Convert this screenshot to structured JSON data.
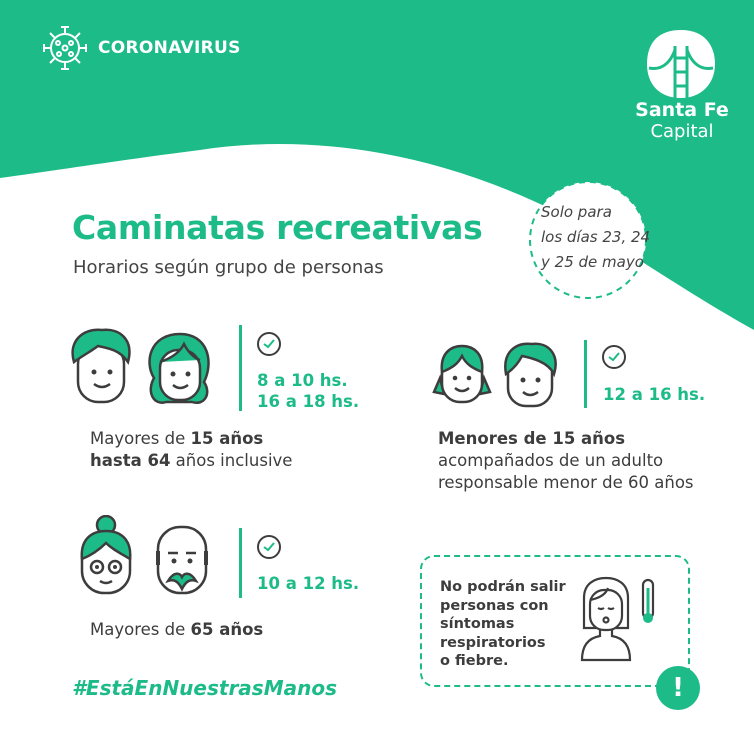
{
  "colors": {
    "brand_green": "#1dbb88",
    "text": "#3d3d3d"
  },
  "header": {
    "title": "CORONAVIRUS",
    "icon": "virus-icon",
    "logo": {
      "line1": "Santa Fe",
      "line2": "Capital",
      "icon": "bridge-logo"
    }
  },
  "main": {
    "title": "Caminatas recreativas",
    "subtitle": "Horarios según grupo de personas",
    "note": {
      "line1": "Solo para",
      "line2": "los días 23, 24",
      "line3": "y 25 de mayo"
    }
  },
  "groups": [
    {
      "icon": "adults-faces-icon",
      "times": [
        "8 a 10 hs.",
        "16 a 18 hs."
      ],
      "desc": {
        "l1a": "Mayores de ",
        "l1b": "15 años",
        "l2a": "hasta 64",
        "l2b": " años inclusive"
      }
    },
    {
      "icon": "kids-faces-icon",
      "times": [
        "12 a 16 hs."
      ],
      "desc": {
        "l1": "Menores de 15 años",
        "l2": "acompañados de un adulto",
        "l3": "responsable menor de 60 años"
      }
    },
    {
      "icon": "elderly-faces-icon",
      "times": [
        "10 a 12 hs."
      ],
      "desc": {
        "l1a": "Mayores de ",
        "l1b": "65 años"
      }
    }
  ],
  "warning": {
    "lines": [
      "No podrán salir",
      "personas con",
      "síntomas",
      "respiratorios",
      "o fiebre."
    ],
    "icon": "sick-person-thermometer-icon",
    "badge": "!"
  },
  "hashtag": "#EstáEnNuestrasManos"
}
